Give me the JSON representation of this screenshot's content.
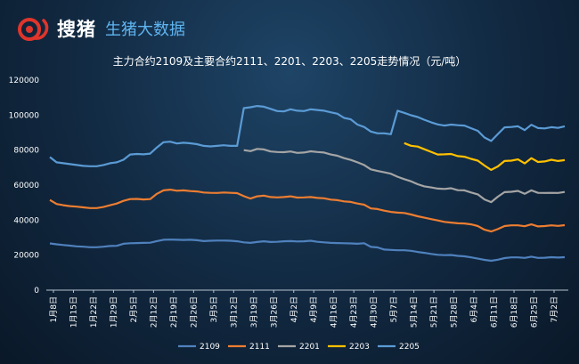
{
  "brand": {
    "logo_icon": "pig-logo-icon",
    "name": "搜猪",
    "sub": "生猪大数据"
  },
  "chart_data": {
    "type": "line",
    "title": "主力合约2109及主要合约2111、2201、2203、2205走势情况（元/吨）",
    "ylim": [
      0,
      120000
    ],
    "yticks": [
      0,
      20000,
      40000,
      60000,
      80000,
      100000,
      120000
    ],
    "y_tick_labels": [
      "0",
      "20000",
      "40000",
      "60000",
      "80000",
      "100000",
      "120000"
    ],
    "grid": false,
    "legend_position": "bottom",
    "x_tick_labels": [
      "1月8日",
      "1月15日",
      "1月22日",
      "1月29日",
      "2月5日",
      "2月12日",
      "2月19日",
      "2月26日",
      "3月5日",
      "3月12日",
      "3月19日",
      "3月26日",
      "4月2日",
      "4月9日",
      "4月16日",
      "4月23日",
      "4月30日",
      "5月7日",
      "5月14日",
      "5月21日",
      "5月28日",
      "6月4日",
      "6月11日",
      "6月18日",
      "6月25日",
      "7月2日"
    ],
    "series": [
      {
        "name": "2109",
        "color": "#4f81bd",
        "values": [
          26700,
          26200,
          25800,
          25400,
          25000,
          24800,
          24500,
          24500,
          24800,
          25200,
          25300,
          26500,
          26800,
          26900,
          27000,
          27100,
          28000,
          28800,
          28900,
          28800,
          28700,
          28800,
          28500,
          28000,
          28200,
          28300,
          28300,
          28200,
          27900,
          27300,
          27000,
          27500,
          27900,
          27500,
          27600,
          27900,
          28000,
          27800,
          27900,
          28200,
          27600,
          27300,
          27000,
          26900,
          26800,
          26700,
          26500,
          26800,
          24700,
          24400,
          23200,
          23000,
          22800,
          22800,
          22500,
          21800,
          21300,
          20700,
          20200,
          20000,
          20100,
          19600,
          19300,
          18700,
          18000,
          17300,
          16800,
          17400,
          18300,
          18700,
          18700,
          18400,
          19100,
          18400,
          18500,
          18800,
          18600,
          18800
        ]
      },
      {
        "name": "2111",
        "color": "#ed7d31",
        "values": [
          51500,
          49200,
          48500,
          48000,
          47700,
          47300,
          46900,
          46900,
          47500,
          48500,
          49500,
          51000,
          52000,
          52100,
          51800,
          52000,
          55000,
          57000,
          57400,
          56800,
          57000,
          56600,
          56400,
          55800,
          55600,
          55500,
          55800,
          55600,
          55400,
          53700,
          52300,
          53600,
          54000,
          53200,
          53000,
          53200,
          53600,
          52900,
          53000,
          53200,
          52700,
          52500,
          51700,
          51400,
          50700,
          50400,
          49500,
          48800,
          46700,
          46300,
          45400,
          44700,
          44300,
          44100,
          43200,
          42200,
          41400,
          40600,
          39800,
          39000,
          38600,
          38200,
          38100,
          37600,
          36600,
          34500,
          33500,
          34900,
          36600,
          37000,
          37000,
          36500,
          37600,
          36400,
          36600,
          37000,
          36700,
          37100
        ]
      },
      {
        "name": "2201",
        "color": "#a5a5a5",
        "values": [
          null,
          null,
          null,
          null,
          null,
          null,
          null,
          null,
          null,
          null,
          null,
          null,
          null,
          null,
          null,
          null,
          null,
          null,
          null,
          null,
          null,
          null,
          null,
          null,
          null,
          null,
          null,
          null,
          null,
          80000,
          79400,
          80700,
          80400,
          79200,
          78900,
          78800,
          79200,
          78400,
          78600,
          79300,
          78900,
          78600,
          77500,
          76800,
          75400,
          74400,
          73000,
          71500,
          69000,
          68100,
          67300,
          66500,
          64800,
          63400,
          62200,
          60500,
          59300,
          58700,
          58000,
          57800,
          58200,
          57100,
          57000,
          55800,
          54700,
          51800,
          50300,
          53400,
          56000,
          56200,
          56700,
          55000,
          57000,
          55600,
          55500,
          55600,
          55500,
          56100
        ]
      },
      {
        "name": "2203",
        "color": "#ffc000",
        "values": [
          null,
          null,
          null,
          null,
          null,
          null,
          null,
          null,
          null,
          null,
          null,
          null,
          null,
          null,
          null,
          null,
          null,
          null,
          null,
          null,
          null,
          null,
          null,
          null,
          null,
          null,
          null,
          null,
          null,
          null,
          null,
          null,
          null,
          null,
          null,
          null,
          null,
          null,
          null,
          null,
          null,
          null,
          null,
          null,
          null,
          null,
          null,
          null,
          null,
          null,
          null,
          null,
          null,
          84000,
          82500,
          82000,
          80500,
          79000,
          77500,
          77600,
          77800,
          76600,
          76200,
          75000,
          74000,
          71200,
          68700,
          70700,
          73800,
          74000,
          74700,
          72400,
          75400,
          73200,
          73500,
          74500,
          73800,
          74300
        ]
      },
      {
        "name": "2205",
        "color": "#5b9bd5",
        "values": [
          76000,
          73000,
          72500,
          72000,
          71500,
          71000,
          70800,
          70800,
          71500,
          72500,
          73000,
          74500,
          77500,
          77800,
          77600,
          78000,
          81500,
          84500,
          84800,
          83800,
          84200,
          83900,
          83400,
          82400,
          82100,
          82400,
          82800,
          82400,
          82400,
          104000,
          104500,
          105200,
          104800,
          103600,
          102300,
          102100,
          103300,
          102500,
          102300,
          103300,
          102900,
          102500,
          101600,
          100800,
          98400,
          97600,
          94600,
          93200,
          90600,
          89600,
          89600,
          89100,
          102500,
          101300,
          99900,
          98900,
          97300,
          95900,
          94700,
          94000,
          94600,
          94200,
          94000,
          92500,
          91000,
          87200,
          85200,
          89200,
          93000,
          93200,
          93600,
          91400,
          94500,
          92600,
          92400,
          93100,
          92700,
          93600
        ]
      }
    ]
  }
}
